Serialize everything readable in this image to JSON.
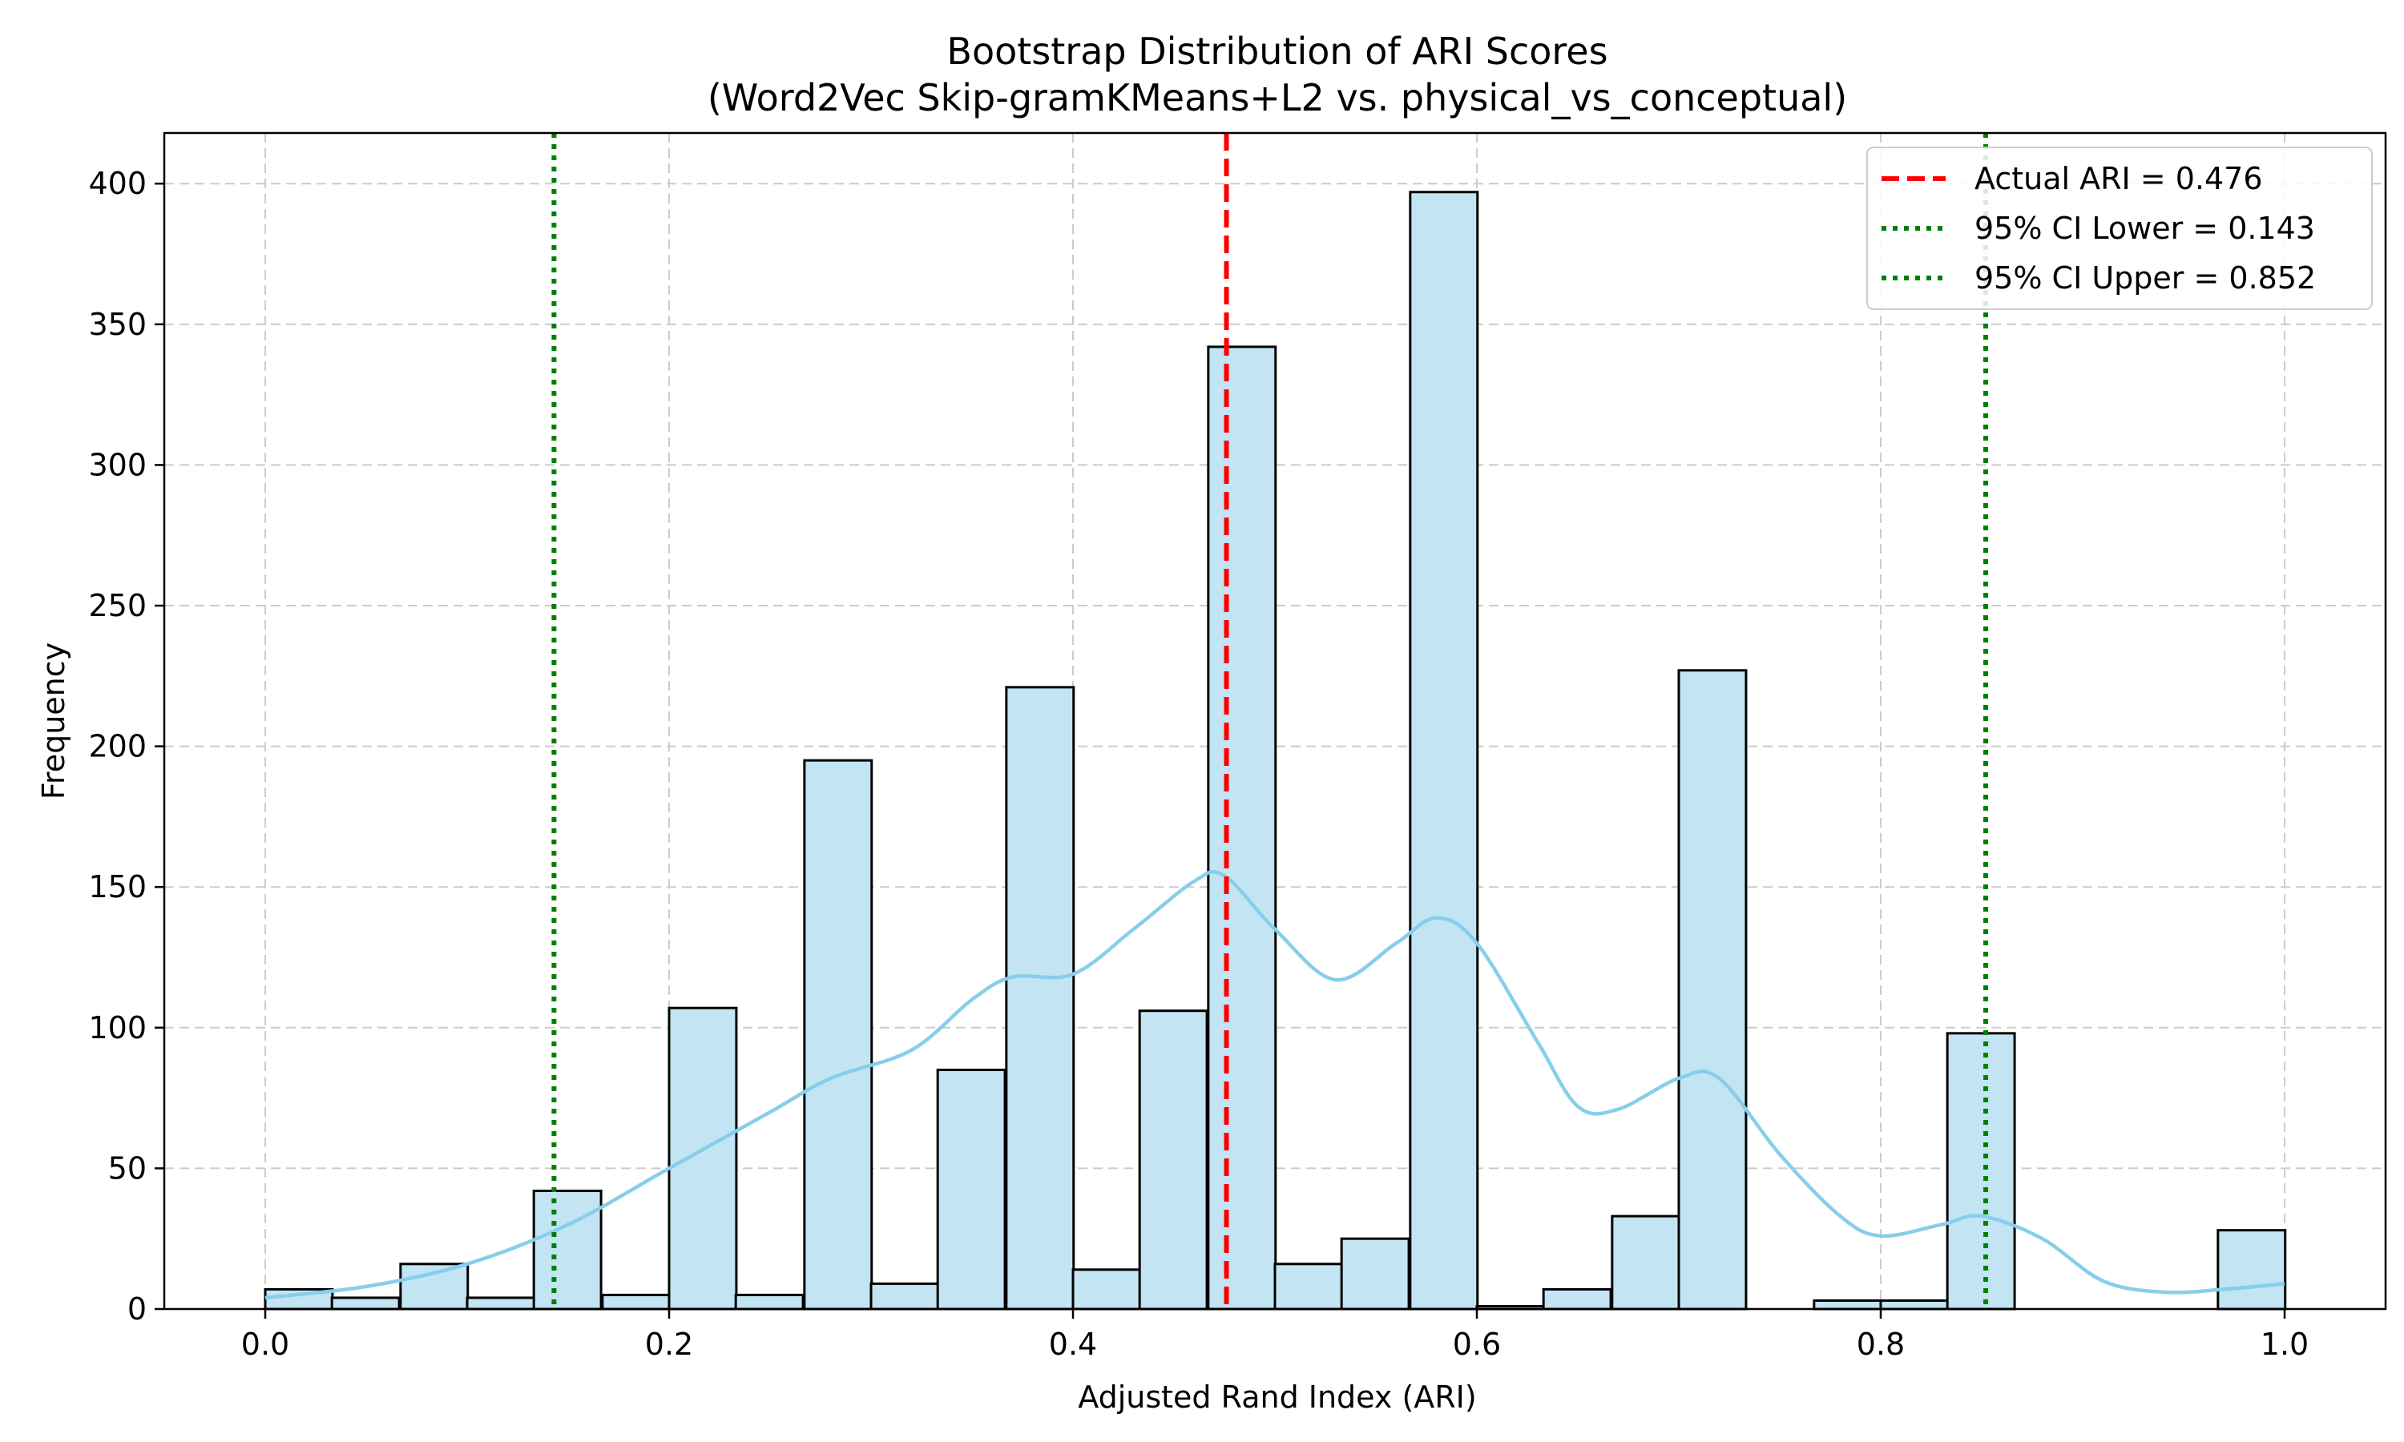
{
  "chart_data": {
    "type": "bar",
    "title": "Bootstrap Distribution of ARI Scores",
    "subtitle": "(Word2Vec Skip-gramKMeans+L2 vs. physical_vs_conceptual)",
    "xlabel": "Adjusted Rand Index (ARI)",
    "ylabel": "Frequency",
    "xlim": [
      -0.05,
      1.05
    ],
    "ylim": [
      0,
      418
    ],
    "grid": true,
    "legend_position": "top-right",
    "x_ticks": [
      "0.0",
      "0.2",
      "0.4",
      "0.6",
      "0.8",
      "1.0"
    ],
    "y_ticks": [
      "0",
      "50",
      "100",
      "150",
      "200",
      "250",
      "300",
      "350",
      "400"
    ],
    "bin_width": 0.0333,
    "bins": [
      {
        "x": 0.0,
        "count": 7
      },
      {
        "x": 0.033,
        "count": 4
      },
      {
        "x": 0.067,
        "count": 16
      },
      {
        "x": 0.1,
        "count": 4
      },
      {
        "x": 0.133,
        "count": 42
      },
      {
        "x": 0.167,
        "count": 5
      },
      {
        "x": 0.2,
        "count": 107
      },
      {
        "x": 0.233,
        "count": 5
      },
      {
        "x": 0.267,
        "count": 195
      },
      {
        "x": 0.3,
        "count": 9
      },
      {
        "x": 0.333,
        "count": 85
      },
      {
        "x": 0.367,
        "count": 221
      },
      {
        "x": 0.4,
        "count": 14
      },
      {
        "x": 0.433,
        "count": 106
      },
      {
        "x": 0.467,
        "count": 342
      },
      {
        "x": 0.5,
        "count": 16
      },
      {
        "x": 0.533,
        "count": 25
      },
      {
        "x": 0.567,
        "count": 397
      },
      {
        "x": 0.6,
        "count": 1
      },
      {
        "x": 0.633,
        "count": 7
      },
      {
        "x": 0.667,
        "count": 33
      },
      {
        "x": 0.7,
        "count": 227
      },
      {
        "x": 0.733,
        "count": 0
      },
      {
        "x": 0.767,
        "count": 3
      },
      {
        "x": 0.8,
        "count": 3
      },
      {
        "x": 0.833,
        "count": 98
      },
      {
        "x": 0.867,
        "count": 0
      },
      {
        "x": 0.9,
        "count": 0
      },
      {
        "x": 0.933,
        "count": 0
      },
      {
        "x": 0.967,
        "count": 28
      }
    ],
    "kde": [
      [
        0.0,
        4
      ],
      [
        0.05,
        8
      ],
      [
        0.1,
        16
      ],
      [
        0.15,
        30
      ],
      [
        0.2,
        50
      ],
      [
        0.25,
        70
      ],
      [
        0.28,
        82
      ],
      [
        0.32,
        92
      ],
      [
        0.35,
        110
      ],
      [
        0.37,
        118
      ],
      [
        0.4,
        119
      ],
      [
        0.43,
        135
      ],
      [
        0.46,
        152
      ],
      [
        0.475,
        154
      ],
      [
        0.5,
        135
      ],
      [
        0.53,
        117
      ],
      [
        0.56,
        130
      ],
      [
        0.58,
        139
      ],
      [
        0.6,
        130
      ],
      [
        0.63,
        95
      ],
      [
        0.65,
        72
      ],
      [
        0.67,
        71
      ],
      [
        0.7,
        82
      ],
      [
        0.72,
        82
      ],
      [
        0.75,
        55
      ],
      [
        0.78,
        33
      ],
      [
        0.8,
        26
      ],
      [
        0.83,
        30
      ],
      [
        0.85,
        33
      ],
      [
        0.88,
        25
      ],
      [
        0.91,
        10
      ],
      [
        0.94,
        6
      ],
      [
        0.97,
        7
      ],
      [
        1.0,
        9
      ]
    ],
    "lines": [
      {
        "x": 0.476,
        "label": "Actual ARI = 0.476",
        "style": "dashed",
        "color": "#ff0000"
      },
      {
        "x": 0.143,
        "label": "95% CI Lower = 0.143",
        "style": "dotted",
        "color": "#008000"
      },
      {
        "x": 0.852,
        "label": "95% CI Upper = 0.852",
        "style": "dotted",
        "color": "#008000"
      }
    ],
    "colors": {
      "bar_fill": "#c2e4f3",
      "bar_edge": "#000000",
      "kde": "#87ceeb",
      "grid": "#cccccc"
    }
  }
}
